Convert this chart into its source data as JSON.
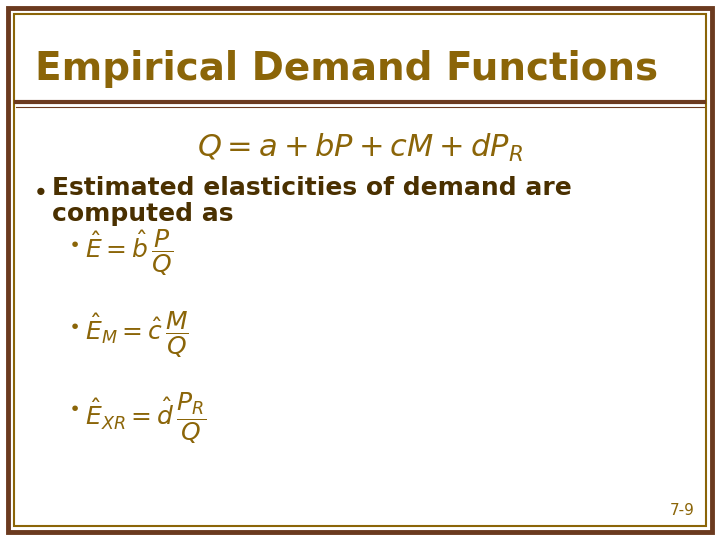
{
  "title": "Empirical Demand Functions",
  "title_color": "#8B6508",
  "background_color": "#FFFFFF",
  "border_outer_color": "#6B3A1F",
  "border_inner_color": "#8B6508",
  "text_color": "#4A3000",
  "formula_color": "#8B6508",
  "slide_number": "7-9",
  "title_fontsize": 28,
  "body_fontsize": 18,
  "math_fontsize": 20,
  "sub_math_fontsize": 16
}
